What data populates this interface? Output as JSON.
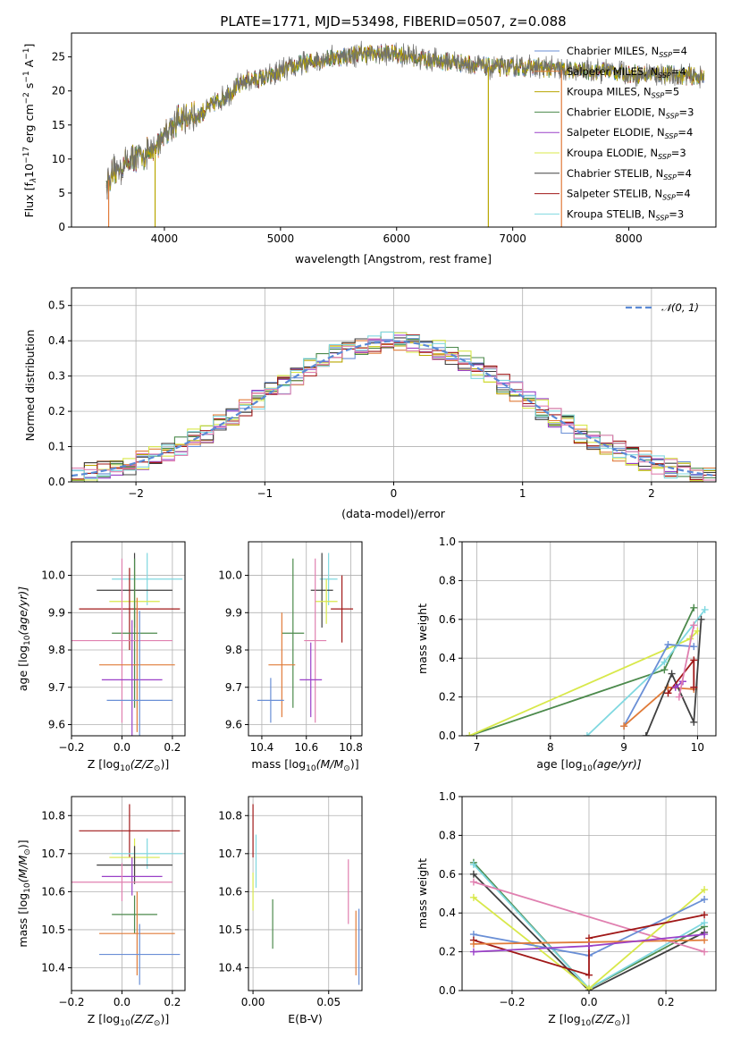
{
  "colors": {
    "Chabrier MILES": "#6a8fd6",
    "Salpeter MILES": "#e07b39",
    "Kroupa MILES": "#b8a600",
    "Chabrier ELODIE": "#4c8a4c",
    "Salpeter ELODIE": "#9a40c8",
    "Kroupa ELODIE": "#d8e84a",
    "Chabrier STELIB": "#404040",
    "Salpeter STELIB": "#a01818",
    "Kroupa STELIB": "#80d8e0",
    "extra_pink": "#e080b0",
    "gaussian": "#5a8ad6"
  },
  "chart_data": [
    {
      "id": "spectrum",
      "type": "line",
      "title": "PLATE=1771, MJD=53498, FIBERID=0507, z=0.088",
      "xlabel": "wavelength [Angstrom, rest frame]",
      "ylabel_parts": [
        "Flux [f",
        "λ",
        "10",
        "−17",
        " erg cm",
        "−2",
        " s",
        "−1",
        " A",
        "−1",
        "]"
      ],
      "xlim": [
        3200,
        8750
      ],
      "ylim": [
        0,
        28.5
      ],
      "xticks": [
        4000,
        5000,
        6000,
        7000,
        8000
      ],
      "yticks": [
        0,
        5,
        10,
        15,
        20,
        25
      ],
      "legend_position": "top-right",
      "legend": [
        {
          "model": "Chabrier MILES",
          "label": "Chabrier MILES, N",
          "sub": "SSP",
          "n": "=4"
        },
        {
          "model": "Salpeter MILES",
          "label": "Salpeter MILES, N",
          "sub": "SSP",
          "n": "=4"
        },
        {
          "model": "Kroupa MILES",
          "label": "Kroupa MILES, N",
          "sub": "SSP",
          "n": "=5"
        },
        {
          "model": "Chabrier ELODIE",
          "label": "Chabrier ELODIE, N",
          "sub": "SSP",
          "n": "=3"
        },
        {
          "model": "Salpeter ELODIE",
          "label": "Salpeter ELODIE, N",
          "sub": "SSP",
          "n": "=4"
        },
        {
          "model": "Kroupa ELODIE",
          "label": "Kroupa ELODIE, N",
          "sub": "SSP",
          "n": "=3"
        },
        {
          "model": "Chabrier STELIB",
          "label": "Chabrier STELIB, N",
          "sub": "SSP",
          "n": "=4"
        },
        {
          "model": "Salpeter STELIB",
          "label": "Salpeter STELIB, N",
          "sub": "SSP",
          "n": "=4"
        },
        {
          "model": "Kroupa STELIB",
          "label": "Kroupa STELIB, N",
          "sub": "SSP",
          "n": "=3"
        }
      ],
      "continuum": [
        [
          3500,
          6.5
        ],
        [
          3600,
          8.5
        ],
        [
          3700,
          10
        ],
        [
          3800,
          10.5
        ],
        [
          3900,
          11
        ],
        [
          4000,
          14
        ],
        [
          4100,
          15.5
        ],
        [
          4300,
          16.5
        ],
        [
          4500,
          19
        ],
        [
          4700,
          21.5
        ],
        [
          4900,
          22
        ],
        [
          5100,
          23.5
        ],
        [
          5300,
          24.5
        ],
        [
          5500,
          25
        ],
        [
          5700,
          25.5
        ],
        [
          6000,
          25.5
        ],
        [
          6300,
          24.5
        ],
        [
          6600,
          24
        ],
        [
          6800,
          23.5
        ],
        [
          7000,
          23.5
        ],
        [
          7200,
          23.5
        ],
        [
          7500,
          23
        ],
        [
          7800,
          23
        ],
        [
          8000,
          22.5
        ],
        [
          8300,
          22.5
        ],
        [
          8650,
          22
        ]
      ],
      "dropouts": [
        {
          "model": "Salpeter MILES",
          "x": 3520
        },
        {
          "model": "Kroupa MILES",
          "x": 3920
        },
        {
          "model": "Kroupa MILES",
          "x": 6790
        },
        {
          "model": "Salpeter MILES",
          "x": 7420
        }
      ]
    },
    {
      "id": "residuals",
      "type": "step",
      "xlabel": "(data-model)/error",
      "ylabel": "Normed distribution",
      "xlim": [
        -2.5,
        2.5
      ],
      "ylim": [
        0,
        0.55
      ],
      "xticks": [
        -2,
        -1,
        0,
        1,
        2
      ],
      "yticks": [
        0.0,
        0.1,
        0.2,
        0.3,
        0.4,
        0.5
      ],
      "legend_label": "𝒩(0, 1)",
      "legend_position": "top-right",
      "bin_width": 0.1
    },
    {
      "id": "age_vs_Z",
      "type": "errorbar",
      "xlabel_parts": [
        "Z [log",
        "10",
        "(Z/Z",
        "⊙",
        ")]"
      ],
      "ylabel_parts": [
        "age  [log",
        "10",
        "(age/yr)]"
      ],
      "xlim": [
        -0.2,
        0.25
      ],
      "ylim": [
        9.57,
        10.09
      ],
      "xticks": [
        -0.2,
        0.0,
        0.2
      ],
      "yticks": [
        9.6,
        9.7,
        9.8,
        9.9,
        10.0
      ],
      "points": [
        {
          "model": "Kroupa STELIB",
          "x": 0.1,
          "xerr": 0.14,
          "y": 9.99,
          "yerr": 0.07
        },
        {
          "model": "Chabrier STELIB",
          "x": 0.05,
          "xerr": 0.15,
          "y": 9.96,
          "yerr": 0.1
        },
        {
          "model": "Kroupa ELODIE",
          "x": 0.05,
          "xerr": 0.1,
          "y": 9.93,
          "yerr": 0.08
        },
        {
          "model": "Salpeter STELIB",
          "x": 0.03,
          "xerr": 0.2,
          "y": 9.91,
          "yerr": 0.11
        },
        {
          "model": "Chabrier ELODIE",
          "x": 0.05,
          "xerr": 0.09,
          "y": 9.845,
          "yerr": 0.2
        },
        {
          "model": "extra_pink",
          "x": 0.0,
          "xerr": 0.2,
          "y": 9.825,
          "yerr": 0.22
        },
        {
          "model": "Salpeter MILES",
          "x": 0.06,
          "xerr": 0.15,
          "y": 9.76,
          "yerr": 0.18
        },
        {
          "model": "Salpeter ELODIE",
          "x": 0.04,
          "xerr": 0.12,
          "y": 9.72,
          "yerr": 0.16
        },
        {
          "model": "Chabrier MILES",
          "x": 0.07,
          "xerr": 0.13,
          "y": 9.665,
          "yerr": 0.24
        }
      ]
    },
    {
      "id": "age_vs_mass",
      "type": "errorbar",
      "xlabel_parts": [
        "mass [log",
        "10",
        "(M/M",
        "⊙",
        ")]"
      ],
      "ylabel": "",
      "xlim": [
        10.34,
        10.85
      ],
      "ylim": [
        9.57,
        10.09
      ],
      "xticks": [
        10.4,
        10.6,
        10.8
      ],
      "yticks": [
        9.6,
        9.7,
        9.8,
        9.9,
        10.0
      ],
      "points": [
        {
          "model": "Kroupa STELIB",
          "x": 10.7,
          "xerr": 0.04,
          "y": 9.99,
          "yerr": 0.07
        },
        {
          "model": "Chabrier STELIB",
          "x": 10.67,
          "xerr": 0.05,
          "y": 9.96,
          "yerr": 0.1
        },
        {
          "model": "Kroupa ELODIE",
          "x": 10.69,
          "xerr": 0.05,
          "y": 9.93,
          "yerr": 0.06
        },
        {
          "model": "Salpeter STELIB",
          "x": 10.76,
          "xerr": 0.05,
          "y": 9.91,
          "yerr": 0.09
        },
        {
          "model": "Chabrier ELODIE",
          "x": 10.54,
          "xerr": 0.05,
          "y": 9.845,
          "yerr": 0.2
        },
        {
          "model": "extra_pink",
          "x": 10.64,
          "xerr": 0.05,
          "y": 9.825,
          "yerr": 0.22
        },
        {
          "model": "Salpeter MILES",
          "x": 10.49,
          "xerr": 0.06,
          "y": 9.76,
          "yerr": 0.14
        },
        {
          "model": "Salpeter ELODIE",
          "x": 10.62,
          "xerr": 0.05,
          "y": 9.72,
          "yerr": 0.1
        },
        {
          "model": "Chabrier MILES",
          "x": 10.44,
          "xerr": 0.06,
          "y": 9.665,
          "yerr": 0.06
        }
      ]
    },
    {
      "id": "weight_vs_age",
      "type": "line",
      "xlabel_parts": [
        "age  [log",
        "10",
        "(age/yr)]"
      ],
      "ylabel": "mass weight",
      "xlim": [
        6.8,
        10.25
      ],
      "ylim": [
        0,
        1.0
      ],
      "xticks": [
        7,
        8,
        9,
        10
      ],
      "yticks": [
        0.0,
        0.2,
        0.4,
        0.6,
        0.8,
        1.0
      ],
      "series": [
        {
          "model": "Chabrier ELODIE",
          "points": [
            [
              6.9,
              0.0
            ],
            [
              9.55,
              0.34
            ],
            [
              9.95,
              0.66
            ]
          ]
        },
        {
          "model": "Kroupa ELODIE",
          "points": [
            [
              6.9,
              0.0
            ],
            [
              9.9,
              0.5
            ],
            [
              10.0,
              0.54
            ]
          ]
        },
        {
          "model": "Kroupa STELIB",
          "points": [
            [
              8.5,
              0.0
            ],
            [
              9.55,
              0.38
            ],
            [
              10.1,
              0.65
            ]
          ]
        },
        {
          "model": "Chabrier MILES",
          "points": [
            [
              9.0,
              0.05
            ],
            [
              9.6,
              0.47
            ],
            [
              9.95,
              0.46
            ]
          ]
        },
        {
          "model": "Salpeter MILES",
          "points": [
            [
              9.0,
              0.05
            ],
            [
              9.6,
              0.25
            ],
            [
              9.95,
              0.24
            ]
          ]
        },
        {
          "model": "Chabrier STELIB",
          "points": [
            [
              9.3,
              0.0
            ],
            [
              9.65,
              0.32
            ],
            [
              9.95,
              0.07
            ],
            [
              10.05,
              0.6
            ]
          ]
        },
        {
          "model": "Salpeter STELIB",
          "points": [
            [
              9.6,
              0.22
            ],
            [
              9.95,
              0.39
            ],
            [
              9.95,
              0.25
            ]
          ]
        },
        {
          "model": "Salpeter ELODIE",
          "points": [
            [
              9.7,
              0.25
            ],
            [
              9.8,
              0.28
            ]
          ]
        },
        {
          "model": "extra_pink",
          "points": [
            [
              9.75,
              0.2
            ],
            [
              9.95,
              0.57
            ]
          ]
        }
      ]
    },
    {
      "id": "mass_vs_Z",
      "type": "errorbar",
      "xlabel_parts": [
        "Z [log",
        "10",
        "(Z/Z",
        "⊙",
        ")]"
      ],
      "ylabel_parts": [
        "mass [log",
        "10",
        "(M/M",
        "⊙",
        ")]"
      ],
      "xlim": [
        -0.2,
        0.25
      ],
      "ylim": [
        10.34,
        10.85
      ],
      "xticks": [
        -0.2,
        0.0,
        0.2
      ],
      "yticks": [
        10.4,
        10.5,
        10.6,
        10.7,
        10.8
      ],
      "points": [
        {
          "model": "Salpeter STELIB",
          "x": 0.03,
          "xerr": 0.2,
          "y": 10.76,
          "yerr": 0.07
        },
        {
          "model": "Kroupa STELIB",
          "x": 0.1,
          "xerr": 0.14,
          "y": 10.7,
          "yerr": 0.04
        },
        {
          "model": "Kroupa ELODIE",
          "x": 0.05,
          "xerr": 0.1,
          "y": 10.69,
          "yerr": 0.05
        },
        {
          "model": "Chabrier STELIB",
          "x": 0.05,
          "xerr": 0.15,
          "y": 10.67,
          "yerr": 0.05
        },
        {
          "model": "Salpeter ELODIE",
          "x": 0.04,
          "xerr": 0.12,
          "y": 10.64,
          "yerr": 0.05
        },
        {
          "model": "extra_pink",
          "x": 0.0,
          "xerr": 0.2,
          "y": 10.625,
          "yerr": 0.05
        },
        {
          "model": "Chabrier ELODIE",
          "x": 0.05,
          "xerr": 0.09,
          "y": 10.54,
          "yerr": 0.05
        },
        {
          "model": "Salpeter MILES",
          "x": 0.06,
          "xerr": 0.15,
          "y": 10.49,
          "yerr": 0.11
        },
        {
          "model": "Chabrier MILES",
          "x": 0.07,
          "xerr": 0.16,
          "y": 10.435,
          "yerr": 0.08
        }
      ]
    },
    {
      "id": "mass_vs_ebv",
      "type": "errorbar",
      "xlabel": "E(B-V)",
      "ylabel": "",
      "xlim": [
        -0.003,
        0.072
      ],
      "ylim": [
        10.34,
        10.85
      ],
      "xticks": [
        0.0,
        0.05
      ],
      "xtick_labels": [
        "0.00",
        "0.05"
      ],
      "yticks": [
        10.4,
        10.5,
        10.6,
        10.7,
        10.8
      ],
      "points": [
        {
          "model": "Salpeter STELIB",
          "x": 0.0,
          "xerr": 0,
          "y": 10.76,
          "yerr": 0.07
        },
        {
          "model": "Kroupa STELIB",
          "x": 0.002,
          "xerr": 0,
          "y": 10.68,
          "yerr": 0.07
        },
        {
          "model": "Kroupa ELODIE",
          "x": 0.0,
          "xerr": 0,
          "y": 10.6,
          "yerr": 0.05
        },
        {
          "model": "Chabrier ELODIE",
          "x": 0.013,
          "xerr": 0,
          "y": 10.515,
          "yerr": 0.065
        },
        {
          "model": "extra_pink",
          "x": 0.063,
          "xerr": 0,
          "y": 10.6,
          "yerr": 0.085
        },
        {
          "model": "Salpeter MILES",
          "x": 0.068,
          "xerr": 0,
          "y": 10.465,
          "yerr": 0.085
        },
        {
          "model": "Chabrier MILES",
          "x": 0.07,
          "xerr": 0,
          "y": 10.455,
          "yerr": 0.1
        }
      ]
    },
    {
      "id": "weight_vs_Z",
      "type": "line",
      "xlabel_parts": [
        "Z [log",
        "10",
        "(Z/Z",
        "⊙",
        ")]"
      ],
      "ylabel": "mass weight",
      "xlim": [
        -0.33,
        0.33
      ],
      "ylim": [
        0,
        1.0
      ],
      "xticks": [
        -0.2,
        0.0,
        0.2
      ],
      "yticks": [
        0.0,
        0.2,
        0.4,
        0.6,
        0.8,
        1.0
      ],
      "series": [
        {
          "model": "Chabrier ELODIE",
          "points": [
            [
              -0.3,
              0.66
            ],
            [
              0.0,
              0.01
            ],
            [
              0.3,
              0.33
            ]
          ]
        },
        {
          "model": "Kroupa STELIB",
          "points": [
            [
              -0.3,
              0.65
            ],
            [
              0.0,
              0.01
            ],
            [
              0.3,
              0.35
            ]
          ]
        },
        {
          "model": "Chabrier STELIB",
          "points": [
            [
              -0.3,
              0.6
            ],
            [
              0.0,
              0.0
            ],
            [
              0.3,
              0.3
            ]
          ]
        },
        {
          "model": "extra_pink",
          "points": [
            [
              -0.3,
              0.56
            ],
            [
              0.3,
              0.2
            ]
          ]
        },
        {
          "model": "Kroupa ELODIE",
          "points": [
            [
              -0.3,
              0.48
            ],
            [
              0.0,
              0.01
            ],
            [
              0.3,
              0.52
            ]
          ]
        },
        {
          "model": "Chabrier MILES",
          "points": [
            [
              -0.3,
              0.29
            ],
            [
              0.0,
              0.18
            ],
            [
              0.3,
              0.47
            ]
          ]
        },
        {
          "model": "Salpeter STELIB",
          "points": [
            [
              -0.3,
              0.26
            ],
            [
              0.0,
              0.08
            ],
            [
              0.0,
              0.27
            ],
            [
              0.3,
              0.39
            ]
          ]
        },
        {
          "model": "Salpeter MILES",
          "points": [
            [
              -0.3,
              0.24
            ],
            [
              0.0,
              0.25
            ],
            [
              0.3,
              0.26
            ]
          ]
        },
        {
          "model": "Salpeter ELODIE",
          "points": [
            [
              -0.3,
              0.2
            ],
            [
              0.0,
              0.23
            ],
            [
              0.3,
              0.29
            ]
          ]
        }
      ]
    }
  ]
}
